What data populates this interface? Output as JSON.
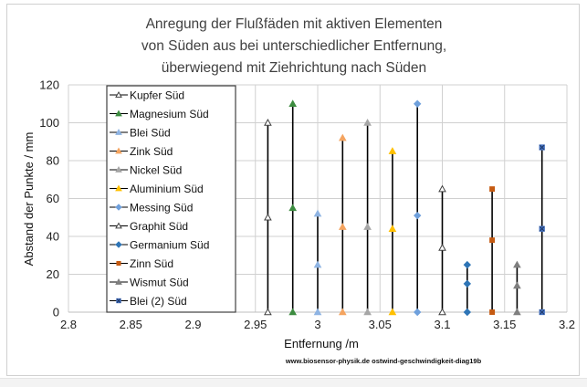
{
  "chart_data": {
    "type": "scatter",
    "title": [
      "Anregung der Flußfäden mit aktiven Elementen",
      "von Süden aus bei unterschiedlicher Entfernung,",
      "überwiegend mit Ziehrichtung nach Süden"
    ],
    "xlabel": "Entfernung /m",
    "ylabel": "Abstand der Punkte / mm",
    "xlim": [
      2.8,
      3.2
    ],
    "ylim": [
      0,
      120
    ],
    "xticks": [
      "2.8",
      "2.85",
      "2.9",
      "2.95",
      "3",
      "3.05",
      "3.1",
      "3.15",
      "3.2"
    ],
    "yticks": [
      "0",
      "20",
      "40",
      "60",
      "80",
      "100",
      "120"
    ],
    "grid": true,
    "legend_position": "left",
    "watermark": "www.biosensor-physik.de  ostwind-geschwindigkeit-diag19b",
    "series": [
      {
        "name": "Kupfer Süd",
        "color": "#404040",
        "marker": "triangle-open",
        "x": [
          2.96,
          2.96,
          2.96
        ],
        "y": [
          0,
          50,
          100
        ]
      },
      {
        "name": "Magnesium Süd",
        "color": "#3d8c40",
        "marker": "triangle",
        "x": [
          2.98,
          2.98,
          2.98
        ],
        "y": [
          0,
          55,
          110
        ]
      },
      {
        "name": "Blei Süd",
        "color": "#8fb4e3",
        "marker": "triangle",
        "x": [
          3.0,
          3.0,
          3.0
        ],
        "y": [
          0,
          25,
          52
        ]
      },
      {
        "name": "Zink Süd",
        "color": "#f4a460",
        "marker": "triangle",
        "x": [
          3.02,
          3.02,
          3.02
        ],
        "y": [
          0,
          45,
          92
        ]
      },
      {
        "name": "Nickel Süd",
        "color": "#a6a6a6",
        "marker": "triangle",
        "x": [
          3.04,
          3.04,
          3.04
        ],
        "y": [
          0,
          45,
          100
        ]
      },
      {
        "name": "Aluminium Süd",
        "color": "#ffc000",
        "marker": "triangle",
        "x": [
          3.06,
          3.06,
          3.06
        ],
        "y": [
          0,
          44,
          85
        ]
      },
      {
        "name": "Messing Süd",
        "color": "#6fa0dc",
        "marker": "diamond",
        "x": [
          3.08,
          3.08,
          3.08
        ],
        "y": [
          0,
          51,
          110
        ]
      },
      {
        "name": "Graphit Süd",
        "color": "#404040",
        "marker": "triangle-open",
        "x": [
          3.1,
          3.1,
          3.1
        ],
        "y": [
          0,
          34,
          65
        ]
      },
      {
        "name": "Germanium Süd",
        "color": "#2e75b6",
        "marker": "diamond",
        "x": [
          3.12,
          3.12,
          3.12
        ],
        "y": [
          0,
          15,
          25
        ]
      },
      {
        "name": "Zinn Süd",
        "color": "#c55a11",
        "marker": "square",
        "x": [
          3.14,
          3.14,
          3.14
        ],
        "y": [
          0,
          38,
          65
        ]
      },
      {
        "name": "Wismut Süd",
        "color": "#7f7f7f",
        "marker": "triangle",
        "x": [
          3.16,
          3.16,
          3.16
        ],
        "y": [
          0,
          14,
          25
        ]
      },
      {
        "name": "Blei (2) Süd",
        "color": "#4472c4",
        "marker": "x-square",
        "x": [
          3.18,
          3.18,
          3.18
        ],
        "y": [
          0,
          44,
          87
        ]
      }
    ]
  }
}
